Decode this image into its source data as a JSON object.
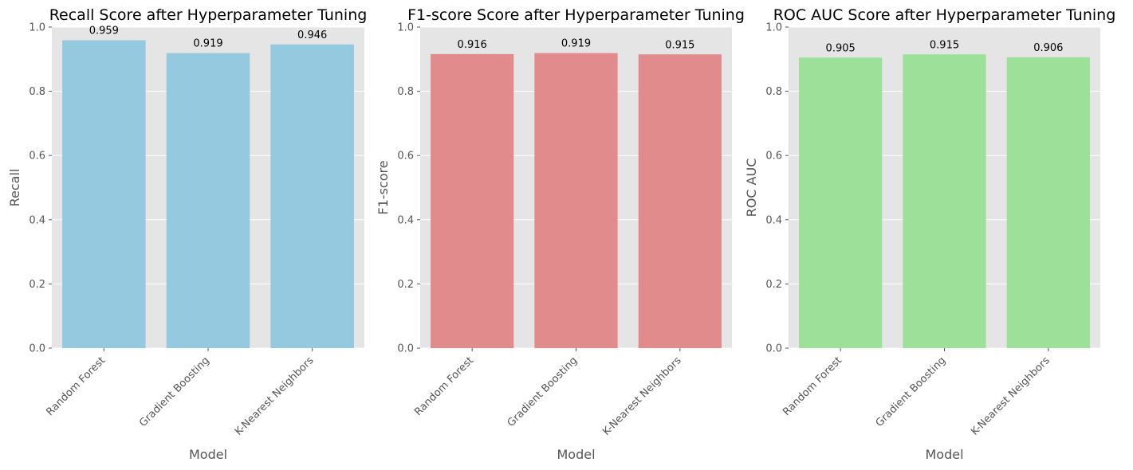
{
  "chart_data": [
    {
      "type": "bar",
      "title": "Recall Score after Hyperparameter Tuning",
      "xlabel": "Model",
      "ylabel": "Recall",
      "categories": [
        "Random Forest",
        "Gradient Boosting",
        "K-Nearest Neighbors"
      ],
      "values": [
        0.959,
        0.919,
        0.946
      ],
      "value_labels": [
        "0.959",
        "0.919",
        "0.946"
      ],
      "ylim": [
        0,
        1
      ],
      "yticks": [
        "0.0",
        "0.2",
        "0.4",
        "0.6",
        "0.8",
        "1.0"
      ],
      "color": "#95c9df",
      "grid": true
    },
    {
      "type": "bar",
      "title": "F1-score Score after Hyperparameter Tuning",
      "xlabel": "Model",
      "ylabel": "F1-score",
      "categories": [
        "Random Forest",
        "Gradient Boosting",
        "K-Nearest Neighbors"
      ],
      "values": [
        0.916,
        0.919,
        0.915
      ],
      "value_labels": [
        "0.916",
        "0.919",
        "0.915"
      ],
      "ylim": [
        0,
        1
      ],
      "yticks": [
        "0.0",
        "0.2",
        "0.4",
        "0.6",
        "0.8",
        "1.0"
      ],
      "color": "#e18b8c",
      "grid": true
    },
    {
      "type": "bar",
      "title": "ROC AUC Score after Hyperparameter Tuning",
      "xlabel": "Model",
      "ylabel": "ROC AUC",
      "categories": [
        "Random Forest",
        "Gradient Boosting",
        "K-Nearest Neighbors"
      ],
      "values": [
        0.905,
        0.915,
        0.906
      ],
      "value_labels": [
        "0.905",
        "0.915",
        "0.906"
      ],
      "ylim": [
        0,
        1
      ],
      "yticks": [
        "0.0",
        "0.2",
        "0.4",
        "0.6",
        "0.8",
        "1.0"
      ],
      "color": "#9ce09a",
      "grid": true
    }
  ]
}
